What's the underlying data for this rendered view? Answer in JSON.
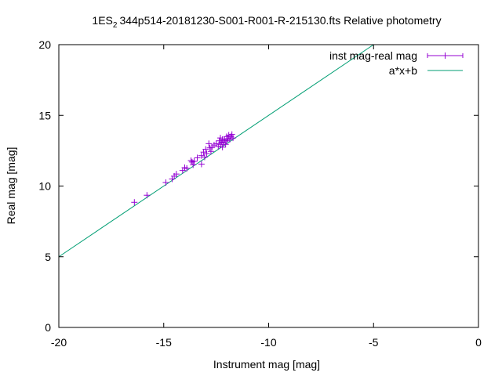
{
  "chart_data": {
    "type": "scatter",
    "title_prefix": "1ES",
    "title_subscript": "2",
    "title_suffix": "344p514-20181230-S001-R001-R-215130.fts Relative photometry",
    "xlabel": "Instrument mag [mag]",
    "ylabel": "Real mag [mag]",
    "xlim": [
      -20,
      0
    ],
    "ylim": [
      0,
      20
    ],
    "xticks": [
      -20,
      -15,
      -10,
      -5,
      0
    ],
    "yticks": [
      0,
      5,
      10,
      15,
      20
    ],
    "grid": false,
    "legend_position": "top-right",
    "series": [
      {
        "name": "inst mag-real mag",
        "kind": "points-with-errorbars",
        "color": "#9400d3",
        "points": [
          [
            -16.4,
            8.85
          ],
          [
            -15.8,
            9.35
          ],
          [
            -14.9,
            10.25
          ],
          [
            -14.6,
            10.5
          ],
          [
            -14.5,
            10.7
          ],
          [
            -14.4,
            10.85
          ],
          [
            -14.1,
            11.1
          ],
          [
            -14.0,
            11.3
          ],
          [
            -13.9,
            11.25
          ],
          [
            -13.7,
            11.8
          ],
          [
            -13.65,
            11.7
          ],
          [
            -13.6,
            11.5
          ],
          [
            -13.55,
            11.75
          ],
          [
            -13.4,
            12.0
          ],
          [
            -13.2,
            11.55
          ],
          [
            -13.2,
            12.15
          ],
          [
            -13.1,
            12.4
          ],
          [
            -13.05,
            12.05
          ],
          [
            -13.0,
            12.6
          ],
          [
            -12.95,
            12.3
          ],
          [
            -12.85,
            13.0
          ],
          [
            -12.8,
            12.7
          ],
          [
            -12.75,
            12.45
          ],
          [
            -12.7,
            12.75
          ],
          [
            -12.6,
            12.9
          ],
          [
            -12.5,
            13.0
          ],
          [
            -12.4,
            12.8
          ],
          [
            -12.35,
            13.2
          ],
          [
            -12.3,
            12.95
          ],
          [
            -12.3,
            13.4
          ],
          [
            -12.25,
            13.1
          ],
          [
            -12.2,
            12.75
          ],
          [
            -12.2,
            13.3
          ],
          [
            -12.15,
            13.05
          ],
          [
            -12.1,
            13.25
          ],
          [
            -12.05,
            12.95
          ],
          [
            -12.0,
            13.2
          ],
          [
            -12.0,
            13.5
          ],
          [
            -11.95,
            13.35
          ],
          [
            -11.9,
            13.6
          ],
          [
            -11.85,
            13.3
          ],
          [
            -11.8,
            13.5
          ],
          [
            -11.75,
            13.65
          ],
          [
            -11.7,
            13.4
          ]
        ]
      },
      {
        "name": "a*x+b",
        "kind": "line",
        "color": "#009e73",
        "slope": 1.0,
        "intercept": 25.0
      }
    ]
  }
}
